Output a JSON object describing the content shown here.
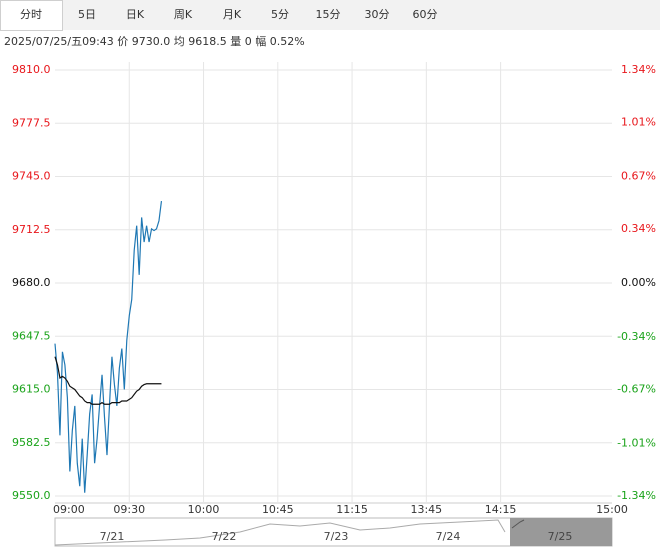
{
  "tabs": [
    "分时",
    "5日",
    "日K",
    "周K",
    "月K",
    "5分",
    "15分",
    "30分",
    "60分"
  ],
  "info": "2025/07/25/五09:43 价 9730.0 均 9618.5 量 0 幅 0.52%",
  "navigator": {
    "labels": [
      "7/21",
      "7/22",
      "7/23",
      "7/24",
      "7/25"
    ]
  },
  "chart_data": {
    "type": "line",
    "x": [
      0,
      1,
      2,
      3,
      4,
      5,
      6,
      7,
      8,
      9,
      10,
      11,
      12,
      13,
      14,
      15,
      16,
      17,
      18,
      19,
      20,
      21,
      22,
      23,
      24,
      25,
      26,
      27,
      28,
      29,
      30,
      31,
      32,
      33,
      34,
      35,
      36,
      37,
      38,
      39,
      40,
      41,
      42,
      43
    ],
    "series": [
      {
        "color": "#1f78b4",
        "values": [
          9643,
          9625,
          9587,
          9638,
          9630,
          9610,
          9565,
          9590,
          9605,
          9570,
          9556,
          9585,
          9552,
          9575,
          9600,
          9612,
          9570,
          9585,
          9605,
          9624,
          9598,
          9575,
          9605,
          9635,
          9618,
          9605,
          9628,
          9640,
          9615,
          9645,
          9660,
          9670,
          9700,
          9715,
          9685,
          9720,
          9705,
          9715,
          9705,
          9713,
          9712,
          9713,
          9718,
          9730
        ]
      },
      {
        "color": "#111111",
        "values": [
          9635,
          9630,
          9622,
          9623,
          9622,
          9620,
          9617,
          9616,
          9615,
          9613,
          9611,
          9610,
          9608,
          9607,
          9607,
          9606,
          9606,
          9606,
          9606,
          9607,
          9606,
          9606,
          9606,
          9607,
          9607,
          9607,
          9607,
          9608,
          9608,
          9608,
          9609,
          9610,
          9612,
          9614,
          9615,
          9617,
          9618,
          9618.5,
          9618.5,
          9618.5,
          9618.5,
          9618.5,
          9618.5,
          9618.5
        ]
      }
    ],
    "xlim": [
      0,
      225
    ],
    "xticks": [
      {
        "value": 0,
        "label": "09:00"
      },
      {
        "value": 30,
        "label": "09:30"
      },
      {
        "value": 60,
        "label": "10:00"
      },
      {
        "value": 90,
        "label": "10:45"
      },
      {
        "value": 120,
        "label": "11:15"
      },
      {
        "value": 150,
        "label": "13:45"
      },
      {
        "value": 180,
        "label": "14:15"
      },
      {
        "value": 225,
        "label": "15:00"
      }
    ],
    "ylim": [
      9550,
      9810
    ],
    "yticks": [
      {
        "value": 9550,
        "label": "9550.0"
      },
      9582.5,
      {
        "value": 9615,
        "label": "9615.0"
      },
      9647.5,
      {
        "value": 9680,
        "label": "9680.0"
      },
      9712.5,
      {
        "value": 9745,
        "label": "9745.0"
      },
      9777.5,
      {
        "value": 9810,
        "label": "9810.0"
      }
    ],
    "y2lim": [
      -1.34,
      1.34
    ],
    "y2ticks": [
      {
        "value": -1.34,
        "label": "-1.34%"
      },
      {
        "value": -1.01,
        "label": "-1.01%"
      },
      {
        "value": -0.67,
        "label": "-0.67%"
      },
      {
        "value": -0.34,
        "label": "-0.34%"
      },
      {
        "value": 0,
        "label": "0.00%"
      },
      {
        "value": 0.34,
        "label": "0.34%"
      },
      {
        "value": 0.67,
        "label": "0.67%"
      },
      {
        "value": 1.01,
        "label": "1.01%"
      },
      {
        "value": 1.34,
        "label": "1.34%"
      }
    ],
    "up_color": "#e8161b",
    "down_color": "#1aa31a",
    "flat_color": "#111111",
    "grid": true
  }
}
